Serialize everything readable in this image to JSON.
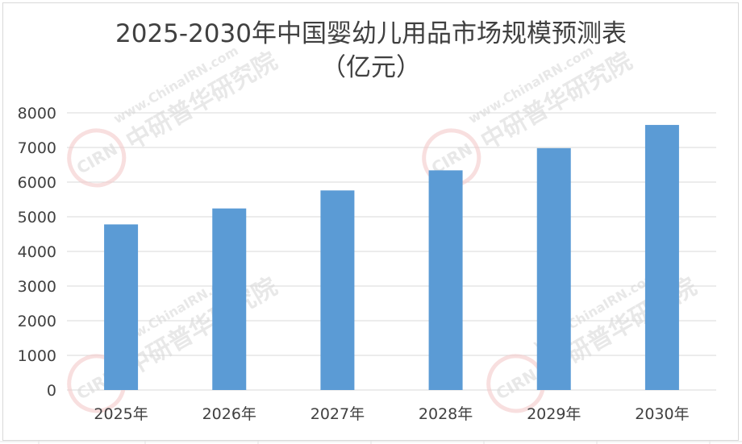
{
  "chart_data": {
    "type": "bar",
    "title": "2025-2030年中国婴幼儿用品市场规模预测表",
    "subtitle": "（亿元）",
    "categories": [
      "2025年",
      "2026年",
      "2027年",
      "2028年",
      "2029年",
      "2030年"
    ],
    "values": [
      4780,
      5240,
      5760,
      6340,
      6980,
      7650
    ],
    "ylim": [
      0,
      8000
    ],
    "yticks": [
      0,
      1000,
      2000,
      3000,
      4000,
      5000,
      6000,
      7000,
      8000
    ],
    "grid": true,
    "legend": "none",
    "bar_color": "#5B9BD5",
    "grid_color": "#d9d9d9"
  },
  "watermark": {
    "url": "www.ChinaIRN.com",
    "name": "中研普华研究院",
    "logo": "CIRN"
  }
}
